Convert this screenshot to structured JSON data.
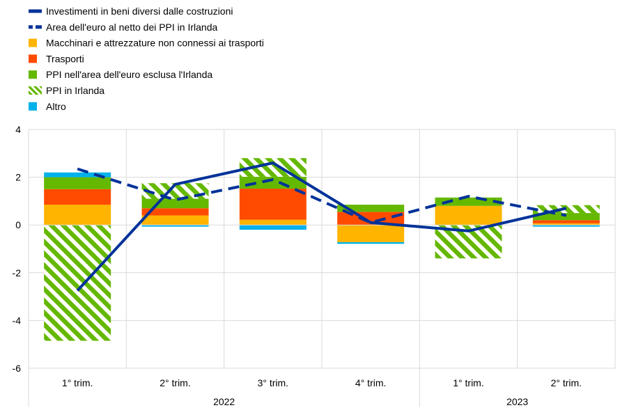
{
  "colors": {
    "investimenti": "#003299",
    "area_euro_netto": "#003299",
    "macchinari": "#FFB400",
    "trasporti": "#FF4B00",
    "ppi_area_euro": "#65B800",
    "ppi_irlanda": "#65B800",
    "altro": "#00B1EA",
    "grid": "#d9d9d9"
  },
  "chart_data": {
    "type": "bar",
    "stacked": true,
    "legend_position": "top-left",
    "grid": true,
    "ylim": [
      -6,
      4
    ],
    "yticks": [
      4,
      2,
      0,
      -2,
      -4,
      -6
    ],
    "ytick_labels": [
      "4",
      "2",
      "0",
      "-2",
      "-4",
      "-6"
    ],
    "categories": [
      "1° trim.",
      "2° trim.",
      "3° trim.",
      "4° trim.",
      "1° trim.",
      "2° trim."
    ],
    "year_groups": [
      {
        "label": "2022",
        "span": 4
      },
      {
        "label": "2023",
        "span": 2
      }
    ],
    "series": [
      {
        "name": "Macchinari e attrezzature non connessi ai trasporti",
        "kind": "bar",
        "color_key": "macchinari",
        "values": [
          0.85,
          0.4,
          0.22,
          -0.72,
          0.8,
          0.07
        ]
      },
      {
        "name": "Trasporti",
        "kind": "bar",
        "color_key": "trasporti",
        "values": [
          0.65,
          0.3,
          1.3,
          0.55,
          0.0,
          0.13
        ]
      },
      {
        "name": "PPI nell'area dell'euro esclusa l'Irlanda",
        "kind": "bar",
        "color_key": "ppi_area_euro",
        "values": [
          0.5,
          0.4,
          0.5,
          0.3,
          0.35,
          0.3
        ],
        "pattern": "solid"
      },
      {
        "name": "PPI in Irlanda",
        "kind": "bar",
        "color_key": "ppi_irlanda",
        "values": [
          -4.85,
          0.65,
          0.78,
          0.0,
          -1.4,
          0.33
        ],
        "pattern": "hatch"
      },
      {
        "name": "Altro",
        "kind": "bar",
        "color_key": "altro",
        "values": [
          0.2,
          -0.07,
          -0.2,
          -0.07,
          0.0,
          -0.07
        ]
      },
      {
        "name": "Investimenti in beni diversi dalle costruzioni",
        "kind": "line",
        "style": "solid",
        "color_key": "investimenti",
        "values": [
          -2.75,
          1.7,
          2.6,
          0.1,
          -0.25,
          0.7
        ]
      },
      {
        "name": "Area dell'euro al netto dei PPI in Irlanda",
        "kind": "line",
        "style": "dashed",
        "color_key": "area_euro_netto",
        "values": [
          2.35,
          1.05,
          1.9,
          0.1,
          1.2,
          0.4
        ]
      }
    ],
    "legend_order": [
      "Investimenti in beni diversi dalle costruzioni",
      "Area dell'euro al netto dei PPI in Irlanda",
      "Macchinari e attrezzature non connessi ai trasporti",
      "Trasporti",
      "PPI nell'area dell'euro esclusa l'Irlanda",
      "PPI in Irlanda",
      "Altro"
    ]
  }
}
